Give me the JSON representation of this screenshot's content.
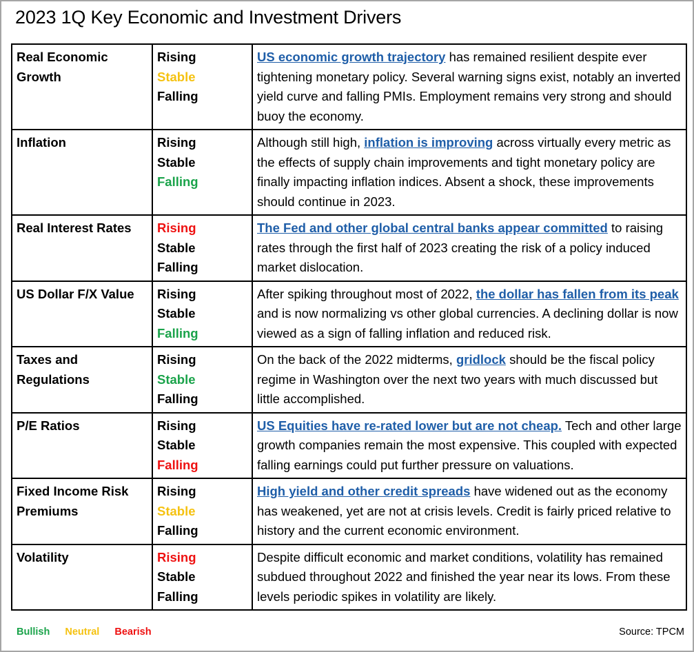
{
  "title": "2023 1Q Key Economic and Investment Drivers",
  "colors": {
    "bullish": "#1aa34a",
    "neutral": "#f5c211",
    "bearish": "#ee1111",
    "link": "#1f5ea8"
  },
  "rows": [
    {
      "factor": "Real Economic Growth",
      "states": [
        {
          "label": "Rising",
          "signal": "none"
        },
        {
          "label": "Stable",
          "signal": "neutral"
        },
        {
          "label": "Falling",
          "signal": "none"
        }
      ],
      "desc_before": "",
      "link": "US economic growth trajectory",
      "desc_after": " has remained resilient despite ever tightening monetary policy.  Several warning signs exist, notably an inverted yield curve and falling PMIs.  Employment remains very strong and should buoy the economy."
    },
    {
      "factor": "Inflation",
      "states": [
        {
          "label": "Rising",
          "signal": "none"
        },
        {
          "label": "Stable",
          "signal": "none"
        },
        {
          "label": "Falling",
          "signal": "bullish"
        }
      ],
      "desc_before": "Although still high, ",
      "link": "inflation is improving",
      "desc_after": " across virtually every metric as the effects of supply chain improvements and tight monetary policy are finally impacting inflation indices.  Absent a shock, these improvements should continue in 2023."
    },
    {
      "factor": "Real Interest Rates",
      "states": [
        {
          "label": "Rising",
          "signal": "bearish"
        },
        {
          "label": "Stable",
          "signal": "none"
        },
        {
          "label": "Falling",
          "signal": "none"
        }
      ],
      "desc_before": "",
      "link": "The Fed and other global central banks appear committed",
      "desc_after": " to raising rates through the first half of 2023 creating the risk of a policy induced market dislocation."
    },
    {
      "factor": "US Dollar F/X Value",
      "states": [
        {
          "label": "Rising",
          "signal": "none"
        },
        {
          "label": "Stable",
          "signal": "none"
        },
        {
          "label": "Falling",
          "signal": "bullish"
        }
      ],
      "desc_before": "After spiking throughout most of 2022, ",
      "link": "the dollar has fallen from its peak",
      "desc_after": " and is now normalizing vs other global currencies.  A declining dollar is now viewed as a sign of falling inflation and reduced risk."
    },
    {
      "factor": "Taxes and Regulations",
      "states": [
        {
          "label": "Rising",
          "signal": "none"
        },
        {
          "label": "Stable",
          "signal": "bullish"
        },
        {
          "label": "Falling",
          "signal": "none"
        }
      ],
      "desc_before": "On the back of the 2022 midterms, ",
      "link": "gridlock",
      "desc_after": " should be the fiscal policy regime in Washington over the next two years with much discussed but little accomplished."
    },
    {
      "factor": "P/E Ratios",
      "states": [
        {
          "label": "Rising",
          "signal": "none"
        },
        {
          "label": "Stable",
          "signal": "none"
        },
        {
          "label": "Falling",
          "signal": "bearish"
        }
      ],
      "desc_before": "",
      "link": "US Equities have re-rated lower but are not cheap.",
      "desc_after": "  Tech and other large growth companies remain the most expensive.  This coupled with expected falling earnings could put further pressure on valuations."
    },
    {
      "factor": "Fixed Income Risk Premiums",
      "states": [
        {
          "label": "Rising",
          "signal": "none"
        },
        {
          "label": "Stable",
          "signal": "neutral"
        },
        {
          "label": "Falling",
          "signal": "none"
        }
      ],
      "desc_before": "",
      "link": "High yield and other credit spreads",
      "desc_after": " have widened out as the economy has weakened, yet are not at crisis levels.  Credit is fairly priced relative to history and the current economic environment."
    },
    {
      "factor": "Volatility",
      "states": [
        {
          "label": "Rising",
          "signal": "bearish"
        },
        {
          "label": "Stable",
          "signal": "none"
        },
        {
          "label": "Falling",
          "signal": "none"
        }
      ],
      "desc_before": "Despite difficult economic and market conditions, volatility has remained subdued throughout 2022 and finished the year near its lows.  From these levels periodic spikes in volatility are likely.",
      "link": "",
      "desc_after": ""
    }
  ],
  "legend": {
    "bullish": "Bullish",
    "neutral": "Neutral",
    "bearish": "Bearish"
  },
  "source": "Source: TPCM"
}
